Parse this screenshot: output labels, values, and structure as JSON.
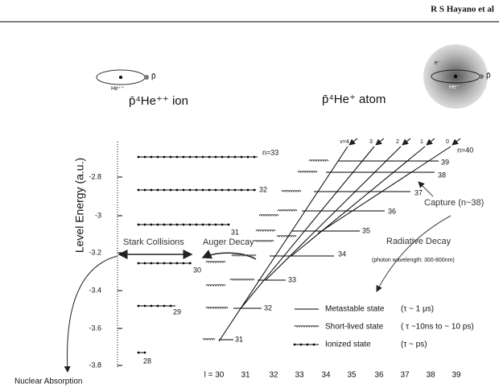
{
  "header": {
    "author": "R S Hayano et al"
  },
  "ion": {
    "label": "p̄⁴He⁺⁺ ion",
    "icon_nucleus": "He⁺⁺",
    "icon_antiproton": "p̄"
  },
  "atom": {
    "label": "p̄⁴He⁺ atom",
    "icon_electron": "e⁻",
    "icon_nucleus": "He⁺",
    "icon_antiproton": "p̄"
  },
  "y_axis": {
    "title": "Level Energy (a.u.)",
    "ticks": [
      -2.8,
      -3,
      -3.2,
      -3.4,
      -3.6,
      -3.8
    ]
  },
  "l_axis": {
    "labels": [
      "l = 30",
      "31",
      "32",
      "33",
      "34",
      "35",
      "36",
      "37",
      "38",
      "39"
    ]
  },
  "ionized_levels": {
    "labels": [
      "n=33",
      "32",
      "31",
      "30",
      "29",
      "28"
    ]
  },
  "metastable_levels": {
    "labels": [
      "n=40",
      "39",
      "38",
      "37",
      "36",
      "35",
      "34",
      "33",
      "32",
      "31"
    ]
  },
  "v_labels": [
    "v=4",
    "3",
    "2",
    "1",
    "0"
  ],
  "annotations": {
    "stark": "Stark Collisions",
    "auger": "Auger Decay",
    "radiative": "Radiative Decay",
    "photon": "(photon wavelength: 300-800nm)",
    "capture": "Capture (n~38)",
    "nuclear": "Nuclear Absorption"
  },
  "legend": {
    "metastable": "Metastable state",
    "metastable_tau": "(τ ~ 1 μs)",
    "short_lived": "Short-lived state",
    "short_lived_tau": "( τ ~10ns to ~ 10 ps)",
    "ionized": "Ionized state",
    "ionized_tau": "(τ ~ ps)"
  }
}
